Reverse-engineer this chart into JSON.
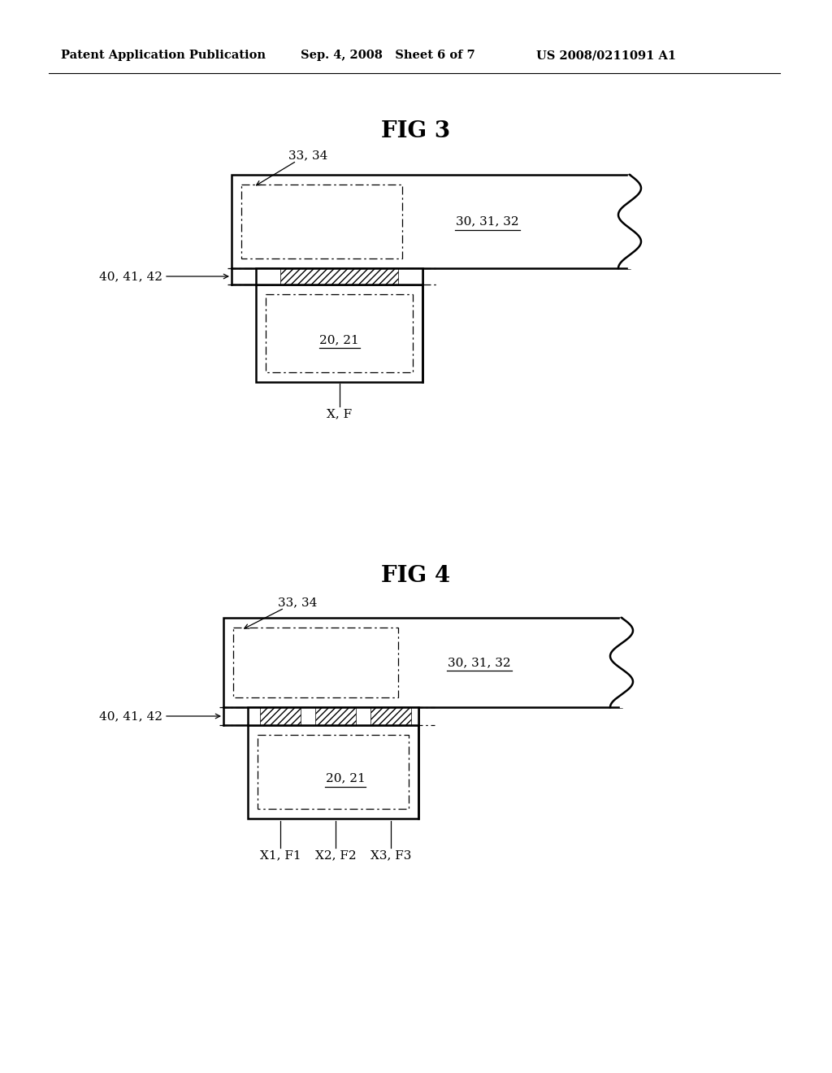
{
  "background_color": "#ffffff",
  "header_left": "Patent Application Publication",
  "header_mid": "Sep. 4, 2008   Sheet 6 of 7",
  "header_right": "US 2008/0211091 A1",
  "fig3_title": "FIG 3",
  "fig4_title": "FIG 4",
  "line_color": "#000000",
  "lw_thick": 1.8,
  "lw_thin": 0.9,
  "lw_medium": 1.2
}
